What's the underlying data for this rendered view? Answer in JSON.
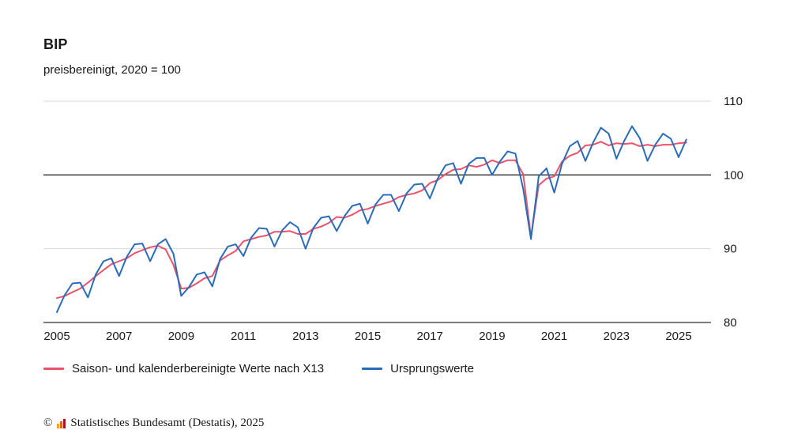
{
  "title": "BIP",
  "subtitle": "preisbereinigt, 2020 = 100",
  "chart_data": {
    "type": "line",
    "title": "BIP",
    "subtitle": "preisbereinigt, 2020 = 100",
    "grid": "horizontal",
    "legend_position": "bottom",
    "x_ticks": [
      2005,
      2007,
      2009,
      2011,
      2013,
      2015,
      2017,
      2019,
      2021,
      2023,
      2025
    ],
    "y_ticks": [
      80,
      90,
      100,
      110
    ],
    "ylim": [
      80,
      110
    ],
    "reference_line": 100,
    "colors": {
      "adjusted_line": "#e8536a",
      "original_line": "#2b6cb8",
      "gridline": "#d9d9d9",
      "axis_line": "#2e2e2e"
    },
    "series": [
      {
        "name": "Saison- und kalenderbereinigte Werte nach X13",
        "color": "#e8536a",
        "start": 2005,
        "step": 0.25,
        "values": [
          83.3,
          83.6,
          84.1,
          84.6,
          85.4,
          86.3,
          87.1,
          87.9,
          88.3,
          88.7,
          89.4,
          89.8,
          90.2,
          90.4,
          89.9,
          87.8,
          84.6,
          84.7,
          85.3,
          86.0,
          86.3,
          88.4,
          89.1,
          89.7,
          91.0,
          91.3,
          91.6,
          91.8,
          92.3,
          92.3,
          92.4,
          92.0,
          92.0,
          92.7,
          93.0,
          93.5,
          94.3,
          94.2,
          94.6,
          95.2,
          95.4,
          95.8,
          96.1,
          96.4,
          97.0,
          97.3,
          97.5,
          97.9,
          98.9,
          99.3,
          100.1,
          100.7,
          100.8,
          101.3,
          101.1,
          101.4,
          102.0,
          101.6,
          102.0,
          102.0,
          100.1,
          91.6,
          98.6,
          99.5,
          99.8,
          101.8,
          102.6,
          103.0,
          104.0,
          104.1,
          104.5,
          104.0,
          104.3,
          104.2,
          104.3,
          103.9,
          104.1,
          103.9,
          104.1,
          104.1,
          104.3,
          104.4
        ]
      },
      {
        "name": "Ursprungswerte",
        "color": "#2b6cb8",
        "start": 2005,
        "step": 0.25,
        "values": [
          81.4,
          83.7,
          85.3,
          85.4,
          83.4,
          86.5,
          88.3,
          88.7,
          86.3,
          88.9,
          90.6,
          90.7,
          88.3,
          90.6,
          91.3,
          89.3,
          83.6,
          84.8,
          86.5,
          86.8,
          84.9,
          88.6,
          90.3,
          90.6,
          89.0,
          91.5,
          92.8,
          92.7,
          90.3,
          92.5,
          93.6,
          92.9,
          90.0,
          92.8,
          94.2,
          94.4,
          92.4,
          94.4,
          95.8,
          96.1,
          93.4,
          96.0,
          97.3,
          97.3,
          95.1,
          97.5,
          98.7,
          98.8,
          96.8,
          99.5,
          101.3,
          101.6,
          98.8,
          101.5,
          102.3,
          102.3,
          100.0,
          101.8,
          103.2,
          102.9,
          98.1,
          91.3,
          99.8,
          100.9,
          97.6,
          101.5,
          103.9,
          104.6,
          101.9,
          104.4,
          106.4,
          105.6,
          102.2,
          104.6,
          106.6,
          105.0,
          101.9,
          104.1,
          105.6,
          104.9,
          102.4,
          104.8
        ]
      }
    ]
  },
  "legend": {
    "items": [
      {
        "label": "Saison- und kalenderbereinigte Werte nach X13",
        "color": "#e8536a"
      },
      {
        "label": "Ursprungswerte",
        "color": "#2b6cb8"
      }
    ]
  },
  "footer": {
    "copyright_symbol": "©",
    "text": "Statistisches Bundesamt (Destatis), 2025",
    "logo_colors": [
      "#f2a71b",
      "#e2611c",
      "#9e1b1f"
    ]
  }
}
